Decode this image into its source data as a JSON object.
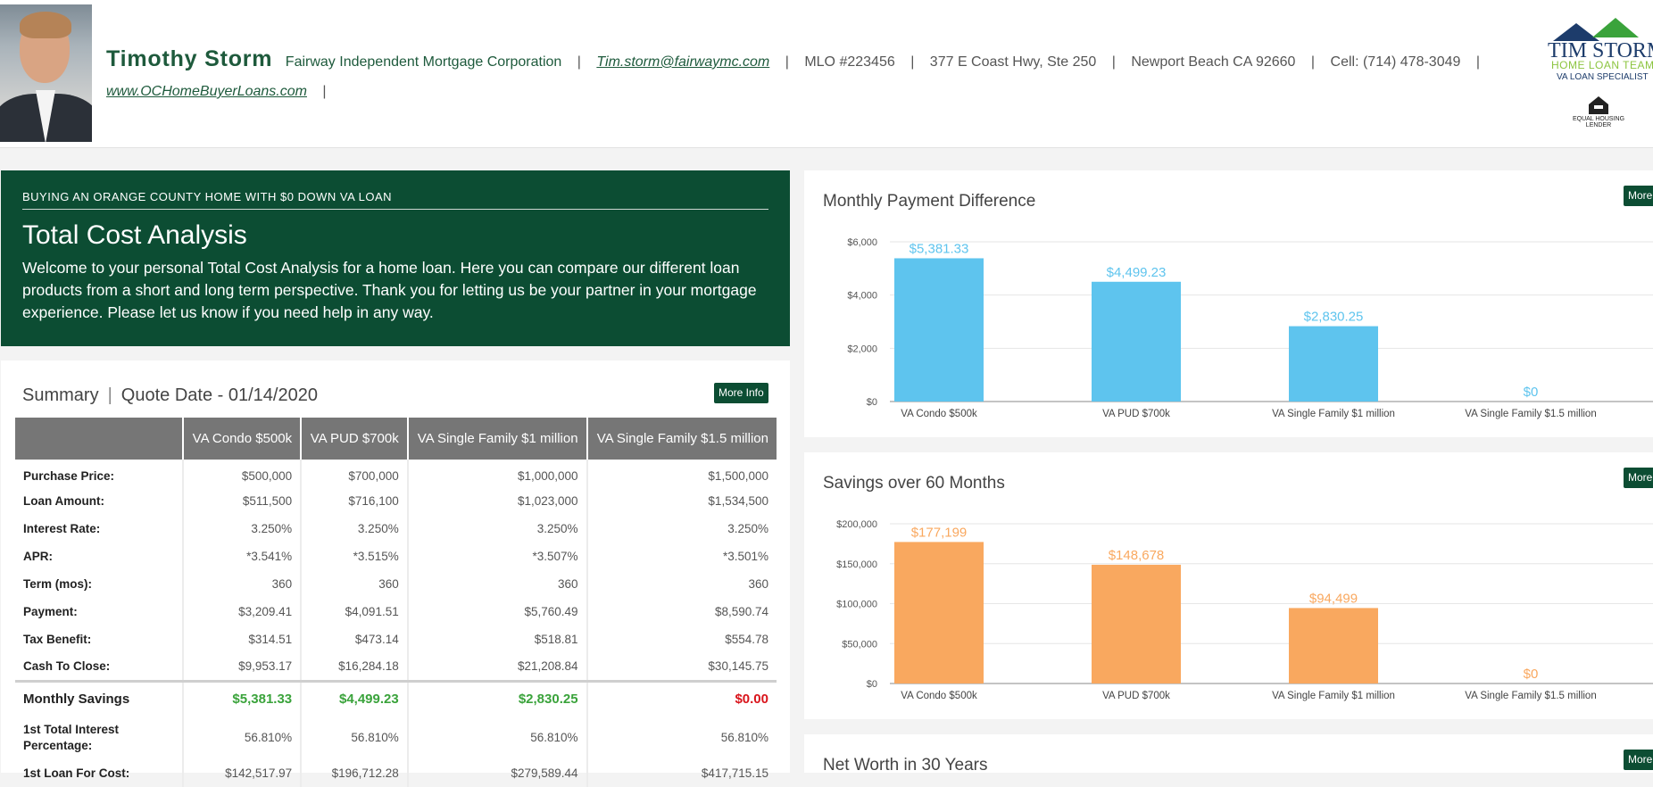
{
  "header": {
    "name": "Timothy Storm",
    "company": "Fairway Independent Mortgage Corporation",
    "email": "Tim.storm@fairwaymc.com",
    "mlo": "MLO #223456",
    "address": "377 E Coast Hwy, Ste 250",
    "city": "Newport Beach CA 92660",
    "cell": "Cell: (714) 478-3049",
    "website": "www.OCHomeBuyerLoans.com",
    "separator": "|"
  },
  "logo": {
    "line1": "TIM STORM",
    "line2": "HOME LOAN TEAM",
    "line3": "VA LOAN SPECIALIST",
    "eho": "EQUAL HOUSING LENDER"
  },
  "intro": {
    "eyebrow": "BUYING AN ORANGE COUNTY HOME WITH $0 DOWN VA LOAN",
    "title": "Total Cost Analysis",
    "body": "Welcome to your personal Total Cost Analysis for a home loan. Here you can compare our different loan products from a short and long term perspective. Thank you for letting us be your partner in your mortgage experience. Please let us know if you need help in any way."
  },
  "summary": {
    "title": "Summary",
    "sep": "|",
    "quote_date": "Quote Date - 01/14/2020",
    "more_info": "More Info",
    "columns": [
      "VA Condo $500k",
      "VA PUD $700k",
      "VA Single Family $1 million",
      "VA Single Family $1.5 million"
    ],
    "rows": [
      {
        "label": "Purchase Price:",
        "values": [
          "$500,000",
          "$700,000",
          "$1,000,000",
          "$1,500,000"
        ]
      },
      {
        "label": "Loan Amount:",
        "values": [
          "$511,500",
          "$716,100",
          "$1,023,000",
          "$1,534,500"
        ]
      },
      {
        "label": "Interest Rate:",
        "values": [
          "3.250%",
          "3.250%",
          "3.250%",
          "3.250%"
        ]
      },
      {
        "label": "APR:",
        "values": [
          "*3.541%",
          "*3.515%",
          "*3.507%",
          "*3.501%"
        ]
      },
      {
        "label": "Term (mos):",
        "values": [
          "360",
          "360",
          "360",
          "360"
        ]
      },
      {
        "label": "Payment:",
        "values": [
          "$3,209.41",
          "$4,091.51",
          "$5,760.49",
          "$8,590.74"
        ]
      },
      {
        "label": "Tax Benefit:",
        "values": [
          "$314.51",
          "$473.14",
          "$518.81",
          "$554.78"
        ]
      },
      {
        "label": "Cash To Close:",
        "values": [
          "$9,953.17",
          "$16,284.18",
          "$21,208.84",
          "$30,145.75"
        ]
      }
    ],
    "monthly_savings": {
      "label": "Monthly Savings",
      "values": [
        "$5,381.33",
        "$4,499.23",
        "$2,830.25",
        "$0.00"
      ]
    },
    "interest_pct": {
      "label": "1st Total Interest Percentage:",
      "values": [
        "56.810%",
        "56.810%",
        "56.810%",
        "56.810%"
      ]
    },
    "partial_row": {
      "label": "1st Loan For Cost:",
      "values": [
        "$142,517.97",
        "$196,712.28",
        "$279,589.44",
        "$417,715.15"
      ]
    }
  },
  "more_label": "More",
  "colors": {
    "blue": "#5ec4ee",
    "orange": "#f9a85f",
    "green": "#0c4d33"
  },
  "chart_data": [
    {
      "type": "bar",
      "title": "Monthly Payment Difference",
      "categories": [
        "VA Condo $500k",
        "VA PUD $700k",
        "VA Single Family $1 million",
        "VA Single Family $1.5 million"
      ],
      "values": [
        5381.33,
        4499.23,
        2830.25,
        0
      ],
      "labels": [
        "$5,381.33",
        "$4,499.23",
        "$2,830.25",
        "$0"
      ],
      "ylim": [
        0,
        6000
      ],
      "yticks": [
        "$0",
        "$2,000",
        "$4,000",
        "$6,000"
      ],
      "color": "#5ec4ee"
    },
    {
      "type": "bar",
      "title": "Savings over 60 Months",
      "categories": [
        "VA Condo $500k",
        "VA PUD $700k",
        "VA Single Family $1 million",
        "VA Single Family $1.5 million"
      ],
      "values": [
        177199,
        148678,
        94499,
        0
      ],
      "labels": [
        "$177,199",
        "$148,678",
        "$94,499",
        "$0"
      ],
      "ylim": [
        0,
        200000
      ],
      "yticks": [
        "$0",
        "$50,000",
        "$100,000",
        "$150,000",
        "$200,000"
      ],
      "color": "#f9a85f"
    },
    {
      "type": "bar",
      "title": "Net Worth in 30 Years"
    }
  ]
}
